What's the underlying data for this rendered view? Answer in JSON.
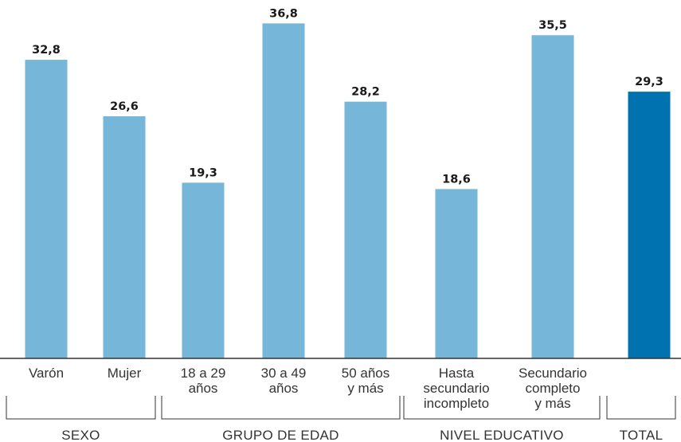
{
  "chart_data": {
    "type": "bar",
    "title": "",
    "xlabel": "",
    "ylabel": "",
    "ylim": [
      0,
      40
    ],
    "grid": false,
    "legend": "none",
    "decimal_separator": ",",
    "colors": {
      "default": "#76b6d8",
      "total": "#0072b0"
    },
    "bars": [
      {
        "label": [
          "Varón"
        ],
        "value": 32.8,
        "highlight": false
      },
      {
        "label": [
          "Mujer"
        ],
        "value": 26.6,
        "highlight": false
      },
      {
        "label": [
          "18 a 29",
          "años"
        ],
        "value": 19.3,
        "highlight": false
      },
      {
        "label": [
          "30 a 49",
          "años"
        ],
        "value": 36.8,
        "highlight": false
      },
      {
        "label": [
          "50 años",
          "y más"
        ],
        "value": 28.2,
        "highlight": false
      },
      {
        "label": [
          "Hasta",
          "secundario",
          "incompleto"
        ],
        "value": 18.6,
        "highlight": false
      },
      {
        "label": [
          "Secundario",
          "completo",
          "y más"
        ],
        "value": 35.5,
        "highlight": false
      },
      {
        "label": [],
        "value": 29.3,
        "highlight": true
      }
    ],
    "groups": [
      {
        "name": "SEXO",
        "bars": [
          0,
          1
        ]
      },
      {
        "name": "GRUPO DE EDAD",
        "bars": [
          2,
          3,
          4
        ]
      },
      {
        "name": "NIVEL EDUCATIVO",
        "bars": [
          5,
          6
        ]
      },
      {
        "name": "TOTAL",
        "bars": [
          7
        ]
      }
    ]
  }
}
